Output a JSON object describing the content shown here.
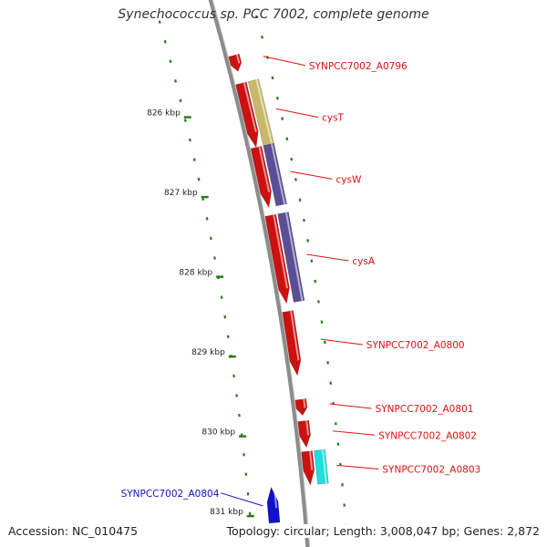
{
  "title": "Synechococcus sp. PCC 7002, complete genome",
  "footer": {
    "accession": "Accession: NC_010475",
    "summary": "Topology: circular; Length: 3,008,047 bp; Genes: 2,872"
  },
  "ticks": [
    {
      "label": "826 kbp",
      "kbp": 826
    },
    {
      "label": "827 kbp",
      "kbp": 827
    },
    {
      "label": "828 kbp",
      "kbp": 828
    },
    {
      "label": "829 kbp",
      "kbp": 829
    },
    {
      "label": "830 kbp",
      "kbp": 830
    },
    {
      "label": "831 kbp",
      "kbp": 831
    }
  ],
  "genes": [
    {
      "label": "SYNPCC7002_A0796",
      "start_kbp": 825.25,
      "end_kbp": 825.45,
      "strand": "+",
      "color": "#cc1111"
    },
    {
      "label": "cysT",
      "start_kbp": 825.6,
      "end_kbp": 826.4,
      "strand": "+",
      "color": "#cc1111"
    },
    {
      "label": "cysW",
      "start_kbp": 826.4,
      "end_kbp": 827.15,
      "strand": "+",
      "color": "#cc1111"
    },
    {
      "label": "cysA",
      "start_kbp": 827.25,
      "end_kbp": 828.35,
      "strand": "+",
      "color": "#cc1111"
    },
    {
      "label": "SYNPCC7002_A0800",
      "start_kbp": 828.45,
      "end_kbp": 829.25,
      "strand": "+",
      "color": "#cc1111"
    },
    {
      "label": "SYNPCC7002_A0801",
      "start_kbp": 829.55,
      "end_kbp": 829.75,
      "strand": "+",
      "color": "#cc1111"
    },
    {
      "label": "SYNPCC7002_A0802",
      "start_kbp": 829.82,
      "end_kbp": 830.15,
      "strand": "+",
      "color": "#cc1111"
    },
    {
      "label": "SYNPCC7002_A0803",
      "start_kbp": 830.2,
      "end_kbp": 830.62,
      "strand": "+",
      "color": "#cc1111"
    },
    {
      "label": "SYNPCC7002_A0804",
      "start_kbp": 830.6,
      "end_kbp": 831.05,
      "strand": "-",
      "color": "#1111cc"
    }
  ],
  "features": [
    {
      "name": "cysT-feature",
      "start_kbp": 825.6,
      "end_kbp": 826.4,
      "color": "#c8b96a"
    },
    {
      "name": "cysW-feature",
      "start_kbp": 826.4,
      "end_kbp": 827.15,
      "color": "#5a4f96"
    },
    {
      "name": "cysA-feature",
      "start_kbp": 827.25,
      "end_kbp": 828.35,
      "color": "#5a4f96"
    },
    {
      "name": "A0803-feature",
      "start_kbp": 830.2,
      "end_kbp": 830.62,
      "color": "#22dddd"
    }
  ],
  "colors": {
    "backbone": "#8c8c8c",
    "tick": "#2a7a1a",
    "forward_label": "#dd1111",
    "reverse_label": "#1111bb"
  }
}
